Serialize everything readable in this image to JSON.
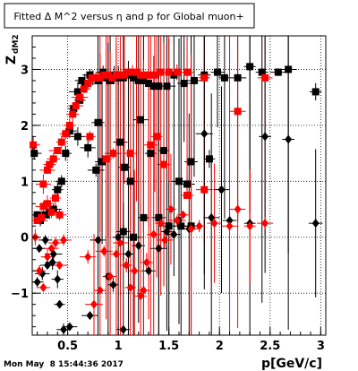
{
  "title": "Fitted Δ M^2 versus η and p for Global muon+",
  "footer_timestamp": "Mon May  8 15:44:36 2017",
  "chart_data": {
    "type": "scatter",
    "title": "Fitted Δ M^2 versus η and p for Global muon+",
    "xlabel": "p[GeV/c]",
    "ylabel": "Z",
    "ylabel_subscript": "dM2",
    "xlim": [
      0.15,
      3.05
    ],
    "ylim": [
      -1.75,
      3.6
    ],
    "xticks": [
      0.5,
      1,
      1.5,
      2,
      2.5,
      3
    ],
    "xtick_labels": [
      "0.5",
      "1",
      "1.5",
      "2",
      "2.5",
      "3"
    ],
    "yticks": [
      -1,
      0,
      1,
      2,
      3
    ],
    "ytick_labels": [
      "−1",
      "0",
      "1",
      "2",
      "3"
    ],
    "grid": true,
    "colors": {
      "black": "#000000",
      "red": "#ff0000"
    },
    "series": [
      {
        "color": "#000000",
        "marker": "square",
        "points": [
          [
            0.17,
            1.5
          ],
          [
            0.2,
            0.4
          ],
          [
            0.23,
            0.3
          ],
          [
            0.28,
            0.4
          ],
          [
            0.32,
            0.45
          ],
          [
            0.36,
            0.5
          ],
          [
            0.4,
            0.85
          ],
          [
            0.44,
            1.0
          ],
          [
            0.48,
            1.5
          ],
          [
            0.52,
            1.9
          ],
          [
            0.56,
            2.3
          ],
          [
            0.6,
            2.6
          ],
          [
            0.64,
            2.8
          ],
          [
            0.67,
            2.75
          ],
          [
            0.72,
            2.9
          ],
          [
            0.75,
            2.85
          ],
          [
            0.8,
            2.8
          ],
          [
            0.85,
            2.95
          ],
          [
            0.88,
            2.85
          ],
          [
            0.92,
            2.8
          ],
          [
            0.96,
            2.9
          ],
          [
            1.0,
            2.85
          ],
          [
            1.05,
            2.85
          ],
          [
            1.1,
            2.9
          ],
          [
            1.15,
            2.85
          ],
          [
            1.2,
            2.8
          ],
          [
            1.25,
            2.8
          ],
          [
            1.3,
            2.75
          ],
          [
            1.35,
            2.7
          ],
          [
            1.4,
            2.7
          ],
          [
            1.48,
            2.7
          ],
          [
            1.55,
            2.9
          ],
          [
            1.65,
            2.75
          ],
          [
            1.75,
            2.8
          ],
          [
            1.85,
            2.9
          ],
          [
            1.98,
            2.95
          ],
          [
            2.05,
            2.85
          ],
          [
            2.18,
            2.85
          ],
          [
            2.3,
            3.05
          ],
          [
            2.42,
            2.95
          ],
          [
            2.58,
            2.95
          ],
          [
            2.68,
            3.0
          ],
          [
            2.95,
            2.6
          ],
          [
            0.62,
            2.45
          ],
          [
            0.78,
            1.2
          ],
          [
            0.84,
            1.35
          ],
          [
            1.02,
            1.7
          ],
          [
            1.06,
            1.25
          ],
          [
            1.12,
            1.0
          ],
          [
            1.22,
            2.1
          ],
          [
            1.32,
            1.5
          ],
          [
            1.45,
            1.55
          ],
          [
            1.6,
            1.0
          ],
          [
            1.68,
            0.95
          ],
          [
            1.72,
            1.35
          ],
          [
            1.9,
            1.4
          ],
          [
            0.8,
            2.05
          ],
          [
            1.05,
            0.1
          ],
          [
            1.15,
            0.0
          ],
          [
            1.25,
            0.35
          ],
          [
            1.4,
            0.35
          ],
          [
            1.5,
            0.2
          ],
          [
            1.62,
            0.2
          ],
          [
            1.72,
            0.2
          ],
          [
            0.6,
            1.8
          ],
          [
            0.7,
            1.6
          ]
        ]
      },
      {
        "color": "#ff0000",
        "marker": "square",
        "points": [
          [
            0.16,
            1.65
          ],
          [
            0.2,
            0.3
          ],
          [
            0.24,
            0.35
          ],
          [
            0.26,
            0.55
          ],
          [
            0.3,
            0.6
          ],
          [
            0.34,
            0.45
          ],
          [
            0.38,
            0.7
          ],
          [
            0.42,
            0.4
          ],
          [
            0.26,
            0.95
          ],
          [
            0.3,
            1.2
          ],
          [
            0.32,
            1.3
          ],
          [
            0.36,
            1.4
          ],
          [
            0.4,
            1.55
          ],
          [
            0.44,
            1.7
          ],
          [
            0.48,
            1.85
          ],
          [
            0.52,
            2.0
          ],
          [
            0.55,
            2.2
          ],
          [
            0.58,
            2.35
          ],
          [
            0.62,
            2.5
          ],
          [
            0.66,
            2.65
          ],
          [
            0.7,
            2.75
          ],
          [
            0.74,
            2.85
          ],
          [
            0.78,
            2.85
          ],
          [
            0.82,
            2.85
          ],
          [
            0.86,
            2.9
          ],
          [
            0.9,
            2.9
          ],
          [
            0.94,
            2.85
          ],
          [
            0.98,
            2.9
          ],
          [
            1.02,
            2.9
          ],
          [
            1.06,
            2.9
          ],
          [
            1.1,
            2.95
          ],
          [
            1.14,
            2.95
          ],
          [
            1.18,
            2.95
          ],
          [
            1.22,
            2.9
          ],
          [
            1.26,
            2.9
          ],
          [
            1.3,
            2.9
          ],
          [
            1.36,
            2.9
          ],
          [
            1.42,
            2.95
          ],
          [
            1.5,
            2.95
          ],
          [
            1.58,
            2.95
          ],
          [
            1.68,
            2.95
          ],
          [
            1.85,
            2.85
          ],
          [
            2.18,
            2.25
          ],
          [
            2.45,
            2.85
          ],
          [
            0.72,
            1.8
          ],
          [
            0.95,
            1.5
          ],
          [
            1.32,
            1.65
          ],
          [
            1.38,
            1.8
          ],
          [
            1.45,
            1.3
          ],
          [
            1.68,
            0.75
          ],
          [
            1.85,
            0.85
          ],
          [
            0.88,
            1.4
          ],
          [
            1.12,
            1.5
          ]
        ]
      },
      {
        "color": "#000000",
        "marker": "diamond",
        "points": [
          [
            0.2,
            -0.8
          ],
          [
            0.25,
            -0.65
          ],
          [
            0.3,
            -0.5
          ],
          [
            0.35,
            -0.45
          ],
          [
            0.42,
            -1.2
          ],
          [
            0.46,
            -1.65
          ],
          [
            0.52,
            -1.6
          ],
          [
            0.22,
            -0.2
          ],
          [
            0.28,
            -0.05
          ],
          [
            0.36,
            -0.3
          ],
          [
            0.4,
            -0.75
          ],
          [
            0.72,
            -1.4
          ],
          [
            0.8,
            -0.05
          ],
          [
            0.9,
            -0.7
          ],
          [
            0.95,
            -0.85
          ],
          [
            1.05,
            -1.65
          ],
          [
            1.0,
            0.0
          ],
          [
            1.1,
            -0.3
          ],
          [
            1.2,
            -0.15
          ],
          [
            1.3,
            -0.6
          ],
          [
            1.4,
            -0.2
          ],
          [
            1.48,
            0.1
          ],
          [
            1.55,
            0.05
          ],
          [
            1.6,
            0.3
          ],
          [
            1.7,
            0.15
          ],
          [
            1.85,
            1.85
          ],
          [
            1.92,
            0.35
          ],
          [
            2.02,
            0.85
          ],
          [
            2.1,
            0.3
          ],
          [
            2.3,
            0.25
          ],
          [
            2.45,
            1.8
          ],
          [
            2.68,
            1.75
          ],
          [
            2.95,
            0.25
          ]
        ]
      },
      {
        "color": "#ff0000",
        "marker": "diamond",
        "points": [
          [
            0.18,
            0.0
          ],
          [
            0.22,
            -0.6
          ],
          [
            0.26,
            -0.9
          ],
          [
            0.3,
            -0.35
          ],
          [
            0.34,
            -0.2
          ],
          [
            0.38,
            -0.1
          ],
          [
            0.42,
            -0.5
          ],
          [
            0.46,
            -0.05
          ],
          [
            0.76,
            -1.2
          ],
          [
            0.82,
            -0.95
          ],
          [
            0.86,
            -0.25
          ],
          [
            0.92,
            -0.7
          ],
          [
            0.98,
            -0.3
          ],
          [
            1.02,
            -0.1
          ],
          [
            1.08,
            -0.5
          ],
          [
            1.12,
            -0.9
          ],
          [
            1.16,
            -0.6
          ],
          [
            1.22,
            -1.05
          ],
          [
            1.28,
            -0.45
          ],
          [
            1.35,
            0.05
          ],
          [
            1.42,
            0.25
          ],
          [
            1.46,
            -0.05
          ],
          [
            1.52,
            0.5
          ],
          [
            1.58,
            0.3
          ],
          [
            1.64,
            0.4
          ],
          [
            1.72,
            0.15
          ],
          [
            1.8,
            0.2
          ],
          [
            1.95,
            0.25
          ],
          [
            2.1,
            0.2
          ],
          [
            2.18,
            0.5
          ],
          [
            2.3,
            0.2
          ],
          [
            2.45,
            0.25
          ],
          [
            0.7,
            -0.35
          ],
          [
            1.25,
            -0.95
          ]
        ]
      }
    ]
  }
}
